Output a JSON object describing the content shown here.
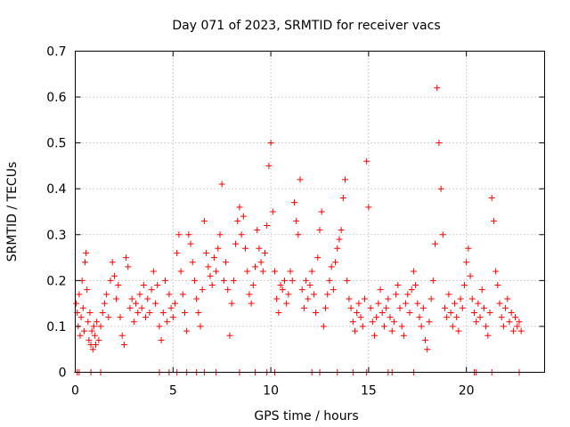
{
  "chart_data": {
    "type": "scatter",
    "title": "Day 071 of 2023, SRMTID for receiver vacs",
    "xlabel": "GPS time / hours",
    "ylabel": "SRMTID / TECUs",
    "xlim": [
      0,
      24
    ],
    "ylim": [
      0,
      0.7
    ],
    "xticks": [
      0,
      5,
      10,
      15,
      20
    ],
    "xtick_labels": [
      "0",
      "5",
      "10",
      "15",
      "20"
    ],
    "yticks": [
      0,
      0.1,
      0.2,
      0.3,
      0.4,
      0.5,
      0.6,
      0.7
    ],
    "ytick_labels": [
      "0",
      "0.1",
      "0.2",
      "0.3",
      "0.4",
      "0.5",
      "0.6",
      "0.7"
    ],
    "grid": true,
    "marker": "+",
    "color": "#ff0000",
    "series": [
      {
        "name": "SRMTID",
        "points": [
          [
            0.05,
            0.15
          ],
          [
            0.1,
            0.13
          ],
          [
            0.15,
            0.1
          ],
          [
            0.2,
            0.17
          ],
          [
            0.25,
            0.08
          ],
          [
            0.3,
            0.12
          ],
          [
            0.35,
            0.2
          ],
          [
            0.4,
            0.14
          ],
          [
            0.45,
            0.09
          ],
          [
            0.5,
            0.24
          ],
          [
            0.55,
            0.26
          ],
          [
            0.6,
            0.18
          ],
          [
            0.65,
            0.11
          ],
          [
            0.7,
            0.07
          ],
          [
            0.75,
            0.13
          ],
          [
            0.8,
            0.06
          ],
          [
            0.85,
            0.09
          ],
          [
            0.9,
            0.05
          ],
          [
            0.95,
            0.1
          ],
          [
            1.0,
            0.08
          ],
          [
            1.05,
            0.06
          ],
          [
            1.1,
            0.11
          ],
          [
            1.2,
            0.07
          ],
          [
            1.3,
            0.1
          ],
          [
            1.4,
            0.13
          ],
          [
            1.5,
            0.15
          ],
          [
            1.6,
            0.17
          ],
          [
            1.7,
            0.12
          ],
          [
            1.8,
            0.2
          ],
          [
            1.9,
            0.24
          ],
          [
            2.0,
            0.21
          ],
          [
            2.1,
            0.16
          ],
          [
            2.2,
            0.19
          ],
          [
            2.3,
            0.12
          ],
          [
            2.4,
            0.08
          ],
          [
            2.5,
            0.06
          ],
          [
            2.6,
            0.25
          ],
          [
            2.7,
            0.23
          ],
          [
            2.8,
            0.14
          ],
          [
            2.9,
            0.16
          ],
          [
            3.0,
            0.11
          ],
          [
            3.1,
            0.15
          ],
          [
            3.2,
            0.13
          ],
          [
            3.3,
            0.17
          ],
          [
            3.4,
            0.14
          ],
          [
            3.5,
            0.19
          ],
          [
            3.6,
            0.12
          ],
          [
            3.7,
            0.16
          ],
          [
            3.8,
            0.13
          ],
          [
            3.9,
            0.18
          ],
          [
            4.0,
            0.22
          ],
          [
            4.1,
            0.15
          ],
          [
            4.2,
            0.19
          ],
          [
            4.3,
            0.1
          ],
          [
            4.4,
            0.07
          ],
          [
            4.5,
            0.13
          ],
          [
            4.6,
            0.2
          ],
          [
            4.7,
            0.11
          ],
          [
            4.8,
            0.17
          ],
          [
            4.9,
            0.14
          ],
          [
            5.0,
            0.12
          ],
          [
            5.1,
            0.15
          ],
          [
            5.2,
            0.26
          ],
          [
            5.3,
            0.3
          ],
          [
            5.4,
            0.22
          ],
          [
            5.5,
            0.17
          ],
          [
            5.6,
            0.13
          ],
          [
            5.7,
            0.09
          ],
          [
            5.8,
            0.3
          ],
          [
            5.9,
            0.28
          ],
          [
            6.0,
            0.24
          ],
          [
            6.1,
            0.2
          ],
          [
            6.2,
            0.16
          ],
          [
            6.3,
            0.13
          ],
          [
            6.4,
            0.1
          ],
          [
            6.5,
            0.18
          ],
          [
            6.6,
            0.33
          ],
          [
            6.7,
            0.26
          ],
          [
            6.8,
            0.23
          ],
          [
            6.9,
            0.21
          ],
          [
            7.0,
            0.19
          ],
          [
            7.1,
            0.25
          ],
          [
            7.2,
            0.22
          ],
          [
            7.3,
            0.27
          ],
          [
            7.4,
            0.3
          ],
          [
            7.5,
            0.41
          ],
          [
            7.6,
            0.2
          ],
          [
            7.7,
            0.24
          ],
          [
            7.8,
            0.18
          ],
          [
            7.9,
            0.08
          ],
          [
            8.0,
            0.15
          ],
          [
            8.1,
            0.2
          ],
          [
            8.2,
            0.28
          ],
          [
            8.3,
            0.33
          ],
          [
            8.4,
            0.36
          ],
          [
            8.5,
            0.3
          ],
          [
            8.6,
            0.34
          ],
          [
            8.7,
            0.27
          ],
          [
            8.8,
            0.22
          ],
          [
            8.9,
            0.17
          ],
          [
            9.0,
            0.15
          ],
          [
            9.1,
            0.19
          ],
          [
            9.2,
            0.23
          ],
          [
            9.3,
            0.31
          ],
          [
            9.4,
            0.27
          ],
          [
            9.5,
            0.24
          ],
          [
            9.6,
            0.22
          ],
          [
            9.7,
            0.26
          ],
          [
            9.8,
            0.32
          ],
          [
            9.9,
            0.45
          ],
          [
            10.0,
            0.5
          ],
          [
            10.1,
            0.35
          ],
          [
            10.2,
            0.22
          ],
          [
            10.3,
            0.16
          ],
          [
            10.4,
            0.13
          ],
          [
            10.5,
            0.19
          ],
          [
            10.6,
            0.18
          ],
          [
            10.7,
            0.2
          ],
          [
            10.8,
            0.15
          ],
          [
            10.9,
            0.17
          ],
          [
            11.0,
            0.22
          ],
          [
            11.1,
            0.2
          ],
          [
            11.2,
            0.37
          ],
          [
            11.3,
            0.33
          ],
          [
            11.4,
            0.3
          ],
          [
            11.5,
            0.42
          ],
          [
            11.6,
            0.18
          ],
          [
            11.7,
            0.14
          ],
          [
            11.8,
            0.2
          ],
          [
            11.9,
            0.16
          ],
          [
            12.0,
            0.19
          ],
          [
            12.1,
            0.22
          ],
          [
            12.2,
            0.17
          ],
          [
            12.3,
            0.13
          ],
          [
            12.4,
            0.25
          ],
          [
            12.5,
            0.31
          ],
          [
            12.6,
            0.35
          ],
          [
            12.7,
            0.1
          ],
          [
            12.8,
            0.14
          ],
          [
            12.9,
            0.17
          ],
          [
            13.0,
            0.2
          ],
          [
            13.1,
            0.23
          ],
          [
            13.2,
            0.18
          ],
          [
            13.3,
            0.24
          ],
          [
            13.4,
            0.27
          ],
          [
            13.5,
            0.29
          ],
          [
            13.6,
            0.31
          ],
          [
            13.7,
            0.38
          ],
          [
            13.8,
            0.42
          ],
          [
            13.9,
            0.2
          ],
          [
            14.0,
            0.16
          ],
          [
            14.1,
            0.14
          ],
          [
            14.2,
            0.11
          ],
          [
            14.3,
            0.09
          ],
          [
            14.4,
            0.13
          ],
          [
            14.5,
            0.15
          ],
          [
            14.6,
            0.12
          ],
          [
            14.7,
            0.1
          ],
          [
            14.8,
            0.16
          ],
          [
            14.9,
            0.46
          ],
          [
            15.0,
            0.36
          ],
          [
            15.1,
            0.14
          ],
          [
            15.2,
            0.11
          ],
          [
            15.3,
            0.08
          ],
          [
            15.4,
            0.12
          ],
          [
            15.5,
            0.15
          ],
          [
            15.6,
            0.18
          ],
          [
            15.7,
            0.13
          ],
          [
            15.8,
            0.1
          ],
          [
            15.9,
            0.14
          ],
          [
            16.0,
            0.16
          ],
          [
            16.1,
            0.12
          ],
          [
            16.2,
            0.09
          ],
          [
            16.3,
            0.11
          ],
          [
            16.4,
            0.17
          ],
          [
            16.5,
            0.19
          ],
          [
            16.6,
            0.14
          ],
          [
            16.7,
            0.1
          ],
          [
            16.8,
            0.08
          ],
          [
            16.9,
            0.15
          ],
          [
            17.0,
            0.17
          ],
          [
            17.1,
            0.13
          ],
          [
            17.2,
            0.18
          ],
          [
            17.3,
            0.22
          ],
          [
            17.4,
            0.19
          ],
          [
            17.5,
            0.15
          ],
          [
            17.6,
            0.12
          ],
          [
            17.7,
            0.1
          ],
          [
            17.8,
            0.14
          ],
          [
            17.9,
            0.07
          ],
          [
            18.0,
            0.05
          ],
          [
            18.1,
            0.11
          ],
          [
            18.2,
            0.16
          ],
          [
            18.3,
            0.2
          ],
          [
            18.4,
            0.28
          ],
          [
            18.5,
            0.62
          ],
          [
            18.6,
            0.5
          ],
          [
            18.7,
            0.4
          ],
          [
            18.8,
            0.3
          ],
          [
            18.9,
            0.14
          ],
          [
            19.0,
            0.12
          ],
          [
            19.1,
            0.17
          ],
          [
            19.2,
            0.13
          ],
          [
            19.3,
            0.1
          ],
          [
            19.4,
            0.15
          ],
          [
            19.5,
            0.12
          ],
          [
            19.6,
            0.09
          ],
          [
            19.7,
            0.16
          ],
          [
            19.8,
            0.14
          ],
          [
            19.9,
            0.19
          ],
          [
            20.0,
            0.24
          ],
          [
            20.1,
            0.27
          ],
          [
            20.2,
            0.21
          ],
          [
            20.3,
            0.16
          ],
          [
            20.4,
            0.13
          ],
          [
            20.5,
            0.11
          ],
          [
            20.6,
            0.15
          ],
          [
            20.7,
            0.12
          ],
          [
            20.8,
            0.18
          ],
          [
            20.9,
            0.14
          ],
          [
            21.0,
            0.1
          ],
          [
            21.1,
            0.08
          ],
          [
            21.2,
            0.13
          ],
          [
            21.3,
            0.38
          ],
          [
            21.4,
            0.33
          ],
          [
            21.5,
            0.22
          ],
          [
            21.6,
            0.19
          ],
          [
            21.7,
            0.15
          ],
          [
            21.8,
            0.12
          ],
          [
            21.9,
            0.1
          ],
          [
            22.0,
            0.14
          ],
          [
            22.1,
            0.16
          ],
          [
            22.2,
            0.11
          ],
          [
            22.3,
            0.13
          ],
          [
            22.4,
            0.09
          ],
          [
            22.5,
            0.12
          ],
          [
            22.6,
            0.1
          ],
          [
            22.7,
            0.11
          ],
          [
            22.8,
            0.09
          ],
          [
            0.1,
            0.0
          ],
          [
            0.2,
            0.0
          ],
          [
            0.8,
            0.0
          ],
          [
            1.3,
            0.0
          ],
          [
            4.3,
            0.0
          ],
          [
            4.8,
            0.0
          ],
          [
            5.2,
            0.0
          ],
          [
            5.7,
            0.0
          ],
          [
            6.2,
            0.0
          ],
          [
            6.6,
            0.0
          ],
          [
            7.2,
            0.0
          ],
          [
            8.4,
            0.0
          ],
          [
            9.2,
            0.0
          ],
          [
            9.8,
            0.0
          ],
          [
            10.2,
            0.0
          ],
          [
            12.1,
            0.0
          ],
          [
            12.5,
            0.0
          ],
          [
            13.4,
            0.0
          ],
          [
            14.2,
            0.0
          ],
          [
            14.9,
            0.0
          ],
          [
            16.0,
            0.0
          ],
          [
            16.2,
            0.0
          ],
          [
            17.3,
            0.0
          ],
          [
            20.4,
            0.0
          ],
          [
            20.5,
            0.0
          ],
          [
            21.3,
            0.0
          ],
          [
            22.7,
            0.0
          ]
        ]
      }
    ]
  }
}
